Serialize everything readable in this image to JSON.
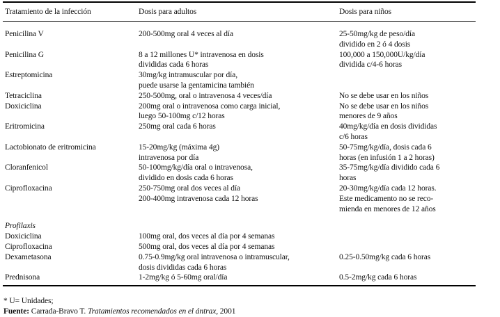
{
  "page": {
    "background": "#ffffff",
    "text_color": "#101010",
    "rule_color": "#000000"
  },
  "table": {
    "columns": [
      "Tratamiento de la infección",
      "Dosis para adultos",
      "Dosis para niños"
    ],
    "rows": [
      {
        "name": "Penicilina V",
        "adult": "200-500mg oral 4 veces al día",
        "child": "25-50mg/kg de peso/día\ndividido en 2 ó 4 dosis"
      },
      {
        "name": "Penicilina G",
        "adult": "8 a 12 millones U* intravenosa en dosis\ndivididas cada 6 horas",
        "child": "100,000 a 150,000U/kg/día\ndividida c/4-6 horas"
      },
      {
        "name": "Estreptomicina",
        "adult": "30mg/kg intramuscular por día,\npuede usarse la gentamicina también",
        "child": ""
      },
      {
        "name": "Tetraciclina",
        "adult": "250-500mg, oral o intravenosa 4 veces/día",
        "child": "No se debe usar en los niños"
      },
      {
        "name": "Doxiciclina",
        "adult": "200mg oral o intravenosa como carga inicial,\nluego 50-100mg c/12 horas",
        "child": "No se debe usar en los niños\nmenores de 9 años"
      },
      {
        "name": "Eritromicina",
        "adult": "250mg oral cada 6 horas",
        "child": "40mg/kg/día en dosis divididas\nc/6 horas"
      },
      {
        "name": "Lactobionato de eritromicina",
        "adult": "15-20mg/kg (máxima 4g)\nintravenosa por día",
        "child": "50-75mg/kg/día, dosis cada 6\nhoras (en infusión 1 a 2 horas)"
      },
      {
        "name": "Cloranfenicol",
        "adult": "50-100mg/kg/día oral o intravenosa,\ndividido en dosis cada 6 horas",
        "child": "35-75mg/kg/día dividido cada 6\nhoras"
      },
      {
        "name": "Ciprofloxacina",
        "adult": "250-750mg oral dos veces al día\n200-400mg intravenosa cada 12 horas",
        "child": "20-30mg/kg/día cada 12 horas.\nEste medicamento no se reco-\nmienda en menores de 12 años"
      },
      {
        "section": "Profilaxis"
      },
      {
        "name": "Doxiciclina",
        "adult": "100mg oral, dos veces al día por 4 semanas",
        "child": ""
      },
      {
        "name": "Ciprofloxacina",
        "adult": "500mg oral, dos veces al día por 4 semanas",
        "child": ""
      },
      {
        "name": "Dexametasona",
        "adult": "0.75-0.9mg/kg oral intravenosa o intramuscular,\ndosis divididas cada 6 horas",
        "child": "0.25-0.50mg/kg cada 6 horas"
      },
      {
        "name": "Prednisona",
        "adult": "1-2mg/kg ó 5-60mg oral/día",
        "child": "0.5-2mg/kg cada 6 horas"
      }
    ]
  },
  "footnotes": {
    "units_note": "* U= Unidades;",
    "source_label": "Fuente:",
    "source_author": " Carrada-Bravo T. ",
    "source_title": "Tratamientos recomendados en el ántrax",
    "source_year": ", 2001"
  }
}
